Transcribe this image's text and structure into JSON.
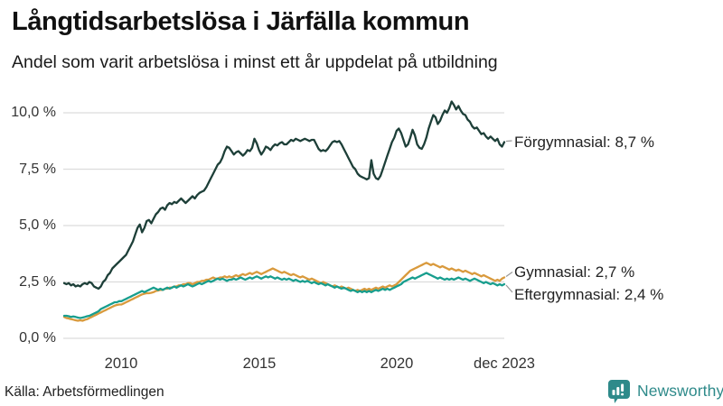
{
  "header": {
    "title": "Långtidsarbetslösa i Järfälla kommun",
    "subtitle": "Andel som varit arbetslösa i minst ett år uppdelat på utbildning"
  },
  "footer": {
    "source": "Källa: Arbetsförmedlingen",
    "brand_name": "Newsworthy",
    "brand_icon": "newsworthy-speech-bubble-barchart-icon",
    "brand_color": "#2e8a8a"
  },
  "colors": {
    "grid": "#dcdcdc",
    "leader": "#999999",
    "tick_text": "#333333",
    "label_text": "#222222"
  },
  "chart_data": {
    "type": "line",
    "title": "Långtidsarbetslösa i Järfälla kommun",
    "subtitle": "Andel som varit arbetslösa i minst ett år uppdelat på utbildning",
    "unit": "%",
    "grid": true,
    "x_start_decimal_year": 2007.917,
    "x_end_decimal_year": 2023.917,
    "x_ticks": [
      {
        "label": "2010",
        "year": 2010.0
      },
      {
        "label": "2015",
        "year": 2015.0
      },
      {
        "label": "2020",
        "year": 2020.0
      },
      {
        "label": "dec 2023",
        "year": 2023.917
      }
    ],
    "y_ticks": [
      {
        "label": "0,0 %",
        "value": 0.0
      },
      {
        "label": "2,5 %",
        "value": 2.5
      },
      {
        "label": "5,0 %",
        "value": 5.0
      },
      {
        "label": "7,5 %",
        "value": 7.5
      },
      {
        "label": "10,0 %",
        "value": 10.0
      }
    ],
    "ylim": [
      0,
      10.8
    ],
    "legend_position": "end-of-line-labels",
    "series": [
      {
        "name": "Förgymnasial",
        "end_label": "Förgymnasial: 8,7 %",
        "end_value_text": "8,7 %",
        "color": "#1d3f38",
        "values": [
          2.45,
          2.4,
          2.45,
          2.35,
          2.4,
          2.3,
          2.35,
          2.3,
          2.4,
          2.45,
          2.4,
          2.5,
          2.45,
          2.3,
          2.25,
          2.2,
          2.3,
          2.5,
          2.6,
          2.8,
          2.9,
          3.1,
          3.2,
          3.3,
          3.4,
          3.5,
          3.6,
          3.7,
          3.9,
          4.1,
          4.3,
          4.6,
          4.9,
          5.05,
          4.7,
          4.9,
          5.2,
          5.25,
          5.1,
          5.3,
          5.5,
          5.6,
          5.75,
          5.8,
          5.7,
          5.9,
          6.0,
          5.95,
          6.05,
          6.0,
          6.1,
          6.2,
          6.1,
          6.0,
          6.1,
          6.2,
          6.3,
          6.2,
          6.35,
          6.45,
          6.5,
          6.55,
          6.7,
          6.9,
          7.1,
          7.3,
          7.5,
          7.7,
          7.8,
          8.0,
          8.3,
          8.5,
          8.45,
          8.3,
          8.15,
          8.25,
          8.3,
          8.2,
          8.1,
          8.2,
          8.35,
          8.3,
          8.45,
          8.85,
          8.65,
          8.35,
          8.15,
          8.3,
          8.5,
          8.45,
          8.35,
          8.5,
          8.6,
          8.55,
          8.65,
          8.7,
          8.6,
          8.6,
          8.7,
          8.8,
          8.75,
          8.85,
          8.8,
          8.75,
          8.8,
          8.85,
          8.8,
          8.75,
          8.8,
          8.8,
          8.6,
          8.4,
          8.3,
          8.35,
          8.3,
          8.4,
          8.55,
          8.7,
          8.75,
          8.7,
          8.75,
          8.6,
          8.4,
          8.2,
          8.0,
          7.8,
          7.6,
          7.5,
          7.3,
          7.2,
          7.15,
          7.1,
          7.05,
          7.1,
          7.9,
          7.3,
          7.1,
          7.05,
          7.2,
          7.5,
          7.8,
          8.1,
          8.4,
          8.7,
          8.9,
          9.2,
          9.3,
          9.1,
          8.8,
          8.5,
          8.6,
          8.9,
          9.25,
          9.0,
          8.6,
          8.45,
          8.4,
          8.6,
          8.9,
          9.3,
          9.6,
          9.9,
          9.8,
          9.5,
          9.65,
          9.9,
          10.1,
          10.0,
          10.2,
          10.5,
          10.35,
          10.15,
          10.3,
          10.1,
          9.95,
          9.9,
          9.7,
          9.6,
          9.4,
          9.3,
          9.35,
          9.2,
          9.05,
          9.1,
          8.95,
          8.85,
          8.95,
          8.85,
          8.75,
          8.85,
          8.6,
          8.5,
          8.7
        ]
      },
      {
        "name": "Gymnasial",
        "end_label": "Gymnasial: 2,7 %",
        "end_value_text": "2,7 %",
        "color": "#d99a3d",
        "values": [
          0.95,
          0.9,
          0.88,
          0.85,
          0.83,
          0.8,
          0.78,
          0.8,
          0.78,
          0.82,
          0.85,
          0.9,
          0.95,
          1.0,
          1.05,
          1.1,
          1.15,
          1.2,
          1.25,
          1.3,
          1.35,
          1.4,
          1.45,
          1.48,
          1.5,
          1.5,
          1.55,
          1.6,
          1.65,
          1.7,
          1.75,
          1.8,
          1.85,
          1.9,
          1.95,
          1.98,
          2.0,
          2.0,
          2.02,
          2.05,
          2.1,
          2.12,
          2.15,
          2.15,
          2.2,
          2.2,
          2.25,
          2.25,
          2.3,
          2.3,
          2.35,
          2.35,
          2.4,
          2.4,
          2.45,
          2.45,
          2.4,
          2.45,
          2.5,
          2.5,
          2.55,
          2.55,
          2.6,
          2.6,
          2.65,
          2.7,
          2.65,
          2.65,
          2.7,
          2.7,
          2.75,
          2.7,
          2.75,
          2.7,
          2.75,
          2.8,
          2.75,
          2.8,
          2.85,
          2.8,
          2.85,
          2.9,
          2.85,
          2.9,
          2.95,
          2.9,
          2.85,
          2.9,
          2.95,
          3.0,
          3.05,
          3.1,
          3.05,
          3.0,
          2.95,
          2.9,
          2.95,
          2.9,
          2.85,
          2.8,
          2.85,
          2.8,
          2.75,
          2.7,
          2.75,
          2.7,
          2.65,
          2.6,
          2.65,
          2.6,
          2.55,
          2.5,
          2.45,
          2.5,
          2.45,
          2.4,
          2.35,
          2.3,
          2.35,
          2.3,
          2.25,
          2.3,
          2.25,
          2.2,
          2.25,
          2.2,
          2.15,
          2.1,
          2.15,
          2.1,
          2.15,
          2.2,
          2.15,
          2.2,
          2.15,
          2.2,
          2.25,
          2.2,
          2.25,
          2.3,
          2.25,
          2.3,
          2.35,
          2.3,
          2.35,
          2.4,
          2.5,
          2.6,
          2.7,
          2.8,
          2.9,
          3.0,
          3.05,
          3.1,
          3.15,
          3.2,
          3.25,
          3.3,
          3.35,
          3.3,
          3.25,
          3.3,
          3.25,
          3.2,
          3.15,
          3.2,
          3.15,
          3.1,
          3.05,
          3.1,
          3.05,
          3.0,
          3.05,
          3.0,
          2.95,
          3.0,
          2.95,
          2.9,
          2.85,
          2.9,
          2.85,
          2.8,
          2.75,
          2.8,
          2.75,
          2.7,
          2.65,
          2.6,
          2.55,
          2.6,
          2.55,
          2.65,
          2.7
        ]
      },
      {
        "name": "Eftergymnasial",
        "end_label": "Eftergymnasial: 2,4 %",
        "end_value_text": "2,4 %",
        "color": "#189e8e",
        "values": [
          1.0,
          1.0,
          0.98,
          0.95,
          0.97,
          0.95,
          0.92,
          0.9,
          0.92,
          0.95,
          0.98,
          1.0,
          1.05,
          1.1,
          1.15,
          1.2,
          1.3,
          1.35,
          1.4,
          1.45,
          1.5,
          1.55,
          1.6,
          1.6,
          1.65,
          1.65,
          1.7,
          1.75,
          1.8,
          1.85,
          1.9,
          1.95,
          2.0,
          2.05,
          2.1,
          2.05,
          2.1,
          2.15,
          2.2,
          2.25,
          2.2,
          2.15,
          2.2,
          2.15,
          2.2,
          2.25,
          2.2,
          2.25,
          2.3,
          2.25,
          2.3,
          2.35,
          2.3,
          2.35,
          2.4,
          2.35,
          2.3,
          2.35,
          2.4,
          2.45,
          2.4,
          2.45,
          2.5,
          2.55,
          2.5,
          2.55,
          2.6,
          2.65,
          2.6,
          2.65,
          2.6,
          2.55,
          2.6,
          2.6,
          2.65,
          2.6,
          2.65,
          2.7,
          2.65,
          2.6,
          2.65,
          2.7,
          2.65,
          2.7,
          2.75,
          2.7,
          2.65,
          2.7,
          2.75,
          2.7,
          2.75,
          2.7,
          2.65,
          2.7,
          2.65,
          2.6,
          2.65,
          2.6,
          2.65,
          2.6,
          2.55,
          2.6,
          2.55,
          2.5,
          2.55,
          2.5,
          2.55,
          2.5,
          2.45,
          2.5,
          2.45,
          2.4,
          2.45,
          2.4,
          2.35,
          2.4,
          2.35,
          2.3,
          2.25,
          2.3,
          2.25,
          2.2,
          2.25,
          2.2,
          2.15,
          2.1,
          2.15,
          2.1,
          2.05,
          2.1,
          2.05,
          2.1,
          2.05,
          2.1,
          2.05,
          2.1,
          2.15,
          2.1,
          2.15,
          2.2,
          2.15,
          2.2,
          2.15,
          2.2,
          2.25,
          2.3,
          2.35,
          2.4,
          2.5,
          2.55,
          2.6,
          2.65,
          2.7,
          2.65,
          2.7,
          2.75,
          2.8,
          2.85,
          2.9,
          2.85,
          2.8,
          2.75,
          2.7,
          2.65,
          2.7,
          2.65,
          2.6,
          2.65,
          2.6,
          2.65,
          2.6,
          2.65,
          2.7,
          2.65,
          2.6,
          2.65,
          2.6,
          2.55,
          2.6,
          2.65,
          2.6,
          2.55,
          2.5,
          2.45,
          2.5,
          2.45,
          2.4,
          2.45,
          2.4,
          2.35,
          2.4,
          2.35,
          2.4
        ]
      }
    ]
  }
}
